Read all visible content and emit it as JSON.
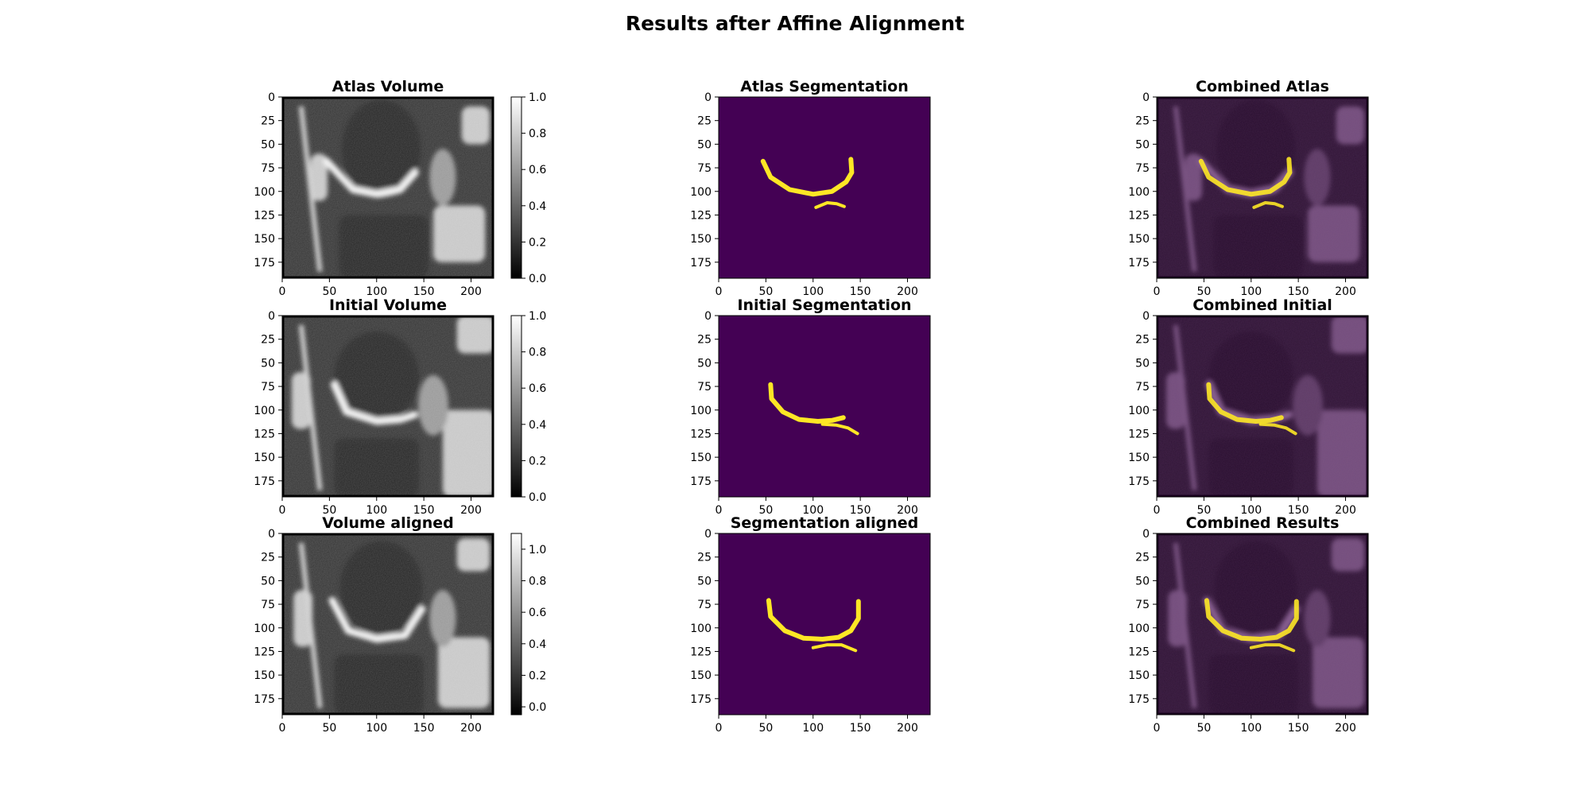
{
  "figure": {
    "title": "Results after Affine Alignment"
  },
  "colors": {
    "seg_background": "#440154",
    "seg_foreground": "#fde725",
    "combined_tint": "#7b4a88",
    "colorbar_low": "#000000",
    "colorbar_high": "#ffffff"
  },
  "chart_data": [
    {
      "type": "heatmap",
      "title": "Atlas Volume",
      "kind": "volume",
      "variant": 0,
      "xlim": [
        0,
        224
      ],
      "ylim": [
        192,
        0
      ],
      "xticks": [
        0,
        50,
        100,
        150,
        200
      ],
      "yticks": [
        0,
        25,
        50,
        75,
        100,
        125,
        150,
        175
      ],
      "colorbar": {
        "ticks": [
          "0.0",
          "0.2",
          "0.4",
          "0.6",
          "0.8",
          "1.0"
        ],
        "range": [
          0,
          1.0
        ]
      }
    },
    {
      "type": "heatmap",
      "title": "Atlas Segmentation",
      "kind": "segmentation",
      "variant": 0,
      "xlim": [
        0,
        224
      ],
      "ylim": [
        192,
        0
      ],
      "xticks": [
        0,
        50,
        100,
        150,
        200
      ],
      "yticks": [
        0,
        25,
        50,
        75,
        100,
        125,
        150,
        175
      ],
      "segments": [
        {
          "points": [
            [
              47,
              68
            ],
            [
              55,
              85
            ],
            [
              75,
              98
            ],
            [
              100,
              103
            ],
            [
              120,
              100
            ],
            [
              135,
              90
            ],
            [
              141,
              80
            ],
            [
              140,
              66
            ]
          ]
        },
        {
          "points": [
            [
              103,
              117
            ],
            [
              115,
              112
            ],
            [
              125,
              113
            ],
            [
              133,
              116
            ]
          ]
        }
      ]
    },
    {
      "type": "heatmap",
      "title": "Combined Atlas",
      "kind": "combined",
      "variant": 0,
      "xlim": [
        0,
        224
      ],
      "ylim": [
        192,
        0
      ],
      "xticks": [
        0,
        50,
        100,
        150,
        200
      ],
      "yticks": [
        0,
        25,
        50,
        75,
        100,
        125,
        150,
        175
      ],
      "segments": [
        {
          "points": [
            [
              47,
              68
            ],
            [
              55,
              85
            ],
            [
              75,
              98
            ],
            [
              100,
              103
            ],
            [
              120,
              100
            ],
            [
              135,
              90
            ],
            [
              141,
              80
            ],
            [
              140,
              66
            ]
          ]
        },
        {
          "points": [
            [
              103,
              117
            ],
            [
              115,
              112
            ],
            [
              125,
              113
            ],
            [
              133,
              116
            ]
          ]
        }
      ]
    },
    {
      "type": "heatmap",
      "title": "Initial Volume",
      "kind": "volume",
      "variant": 1,
      "xlim": [
        0,
        224
      ],
      "ylim": [
        192,
        0
      ],
      "xticks": [
        0,
        50,
        100,
        150,
        200
      ],
      "yticks": [
        0,
        25,
        50,
        75,
        100,
        125,
        150,
        175
      ],
      "colorbar": {
        "ticks": [
          "0.0",
          "0.2",
          "0.4",
          "0.6",
          "0.8",
          "1.0"
        ],
        "range": [
          0,
          1.0
        ]
      }
    },
    {
      "type": "heatmap",
      "title": "Initial Segmentation",
      "kind": "segmentation",
      "variant": 1,
      "xlim": [
        0,
        224
      ],
      "ylim": [
        192,
        0
      ],
      "xticks": [
        0,
        50,
        100,
        150,
        200
      ],
      "yticks": [
        0,
        25,
        50,
        75,
        100,
        125,
        150,
        175
      ],
      "segments": [
        {
          "points": [
            [
              55,
              73
            ],
            [
              56,
              88
            ],
            [
              68,
              102
            ],
            [
              85,
              110
            ],
            [
              105,
              112
            ],
            [
              120,
              111
            ],
            [
              132,
              108
            ]
          ]
        },
        {
          "points": [
            [
              110,
              115
            ],
            [
              125,
              116
            ],
            [
              137,
              119
            ],
            [
              147,
              125
            ]
          ]
        }
      ]
    },
    {
      "type": "heatmap",
      "title": "Combined Initial",
      "kind": "combined",
      "variant": 1,
      "xlim": [
        0,
        224
      ],
      "ylim": [
        192,
        0
      ],
      "xticks": [
        0,
        50,
        100,
        150,
        200
      ],
      "yticks": [
        0,
        25,
        50,
        75,
        100,
        125,
        150,
        175
      ],
      "segments": [
        {
          "points": [
            [
              55,
              73
            ],
            [
              56,
              88
            ],
            [
              68,
              102
            ],
            [
              85,
              110
            ],
            [
              105,
              112
            ],
            [
              120,
              111
            ],
            [
              132,
              108
            ]
          ]
        },
        {
          "points": [
            [
              110,
              115
            ],
            [
              125,
              116
            ],
            [
              137,
              119
            ],
            [
              147,
              125
            ]
          ]
        }
      ]
    },
    {
      "type": "heatmap",
      "title": "Volume aligned",
      "kind": "volume",
      "variant": 2,
      "xlim": [
        0,
        224
      ],
      "ylim": [
        192,
        0
      ],
      "xticks": [
        0,
        50,
        100,
        150,
        200
      ],
      "yticks": [
        0,
        25,
        50,
        75,
        100,
        125,
        150,
        175
      ],
      "colorbar": {
        "ticks": [
          "0.0",
          "0.2",
          "0.4",
          "0.6",
          "0.8",
          "1.0"
        ],
        "range": [
          -0.05,
          1.1
        ]
      }
    },
    {
      "type": "heatmap",
      "title": "Segmentation aligned",
      "kind": "segmentation",
      "variant": 2,
      "xlim": [
        0,
        224
      ],
      "ylim": [
        192,
        0
      ],
      "xticks": [
        0,
        50,
        100,
        150,
        200
      ],
      "yticks": [
        0,
        25,
        50,
        75,
        100,
        125,
        150,
        175
      ],
      "segments": [
        {
          "points": [
            [
              53,
              71
            ],
            [
              55,
              88
            ],
            [
              70,
              103
            ],
            [
              90,
              111
            ],
            [
              110,
              112
            ],
            [
              127,
              110
            ],
            [
              140,
              103
            ],
            [
              148,
              90
            ],
            [
              148,
              72
            ]
          ]
        },
        {
          "points": [
            [
              100,
              121
            ],
            [
              115,
              118
            ],
            [
              130,
              118
            ],
            [
              145,
              124
            ]
          ]
        }
      ]
    },
    {
      "type": "heatmap",
      "title": "Combined Results",
      "kind": "combined",
      "variant": 2,
      "xlim": [
        0,
        224
      ],
      "ylim": [
        192,
        0
      ],
      "xticks": [
        0,
        50,
        100,
        150,
        200
      ],
      "yticks": [
        0,
        25,
        50,
        75,
        100,
        125,
        150,
        175
      ],
      "segments": [
        {
          "points": [
            [
              53,
              71
            ],
            [
              55,
              88
            ],
            [
              70,
              103
            ],
            [
              90,
              111
            ],
            [
              110,
              112
            ],
            [
              127,
              110
            ],
            [
              140,
              103
            ],
            [
              148,
              90
            ],
            [
              148,
              72
            ]
          ]
        },
        {
          "points": [
            [
              100,
              121
            ],
            [
              115,
              118
            ],
            [
              130,
              118
            ],
            [
              145,
              124
            ]
          ]
        }
      ]
    }
  ]
}
